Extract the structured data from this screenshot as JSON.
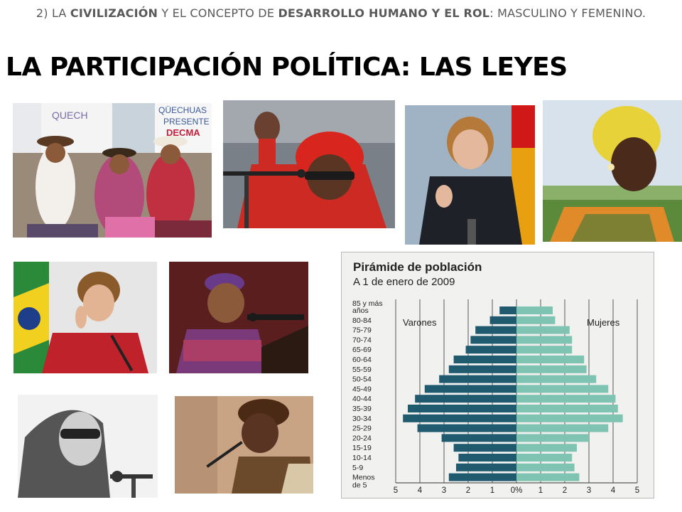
{
  "slide": {
    "subtitle_parts": {
      "p1": "2) LA ",
      "p2": "CIVILIZACIÓN",
      "p3": " Y EL CONCEPTO DE  ",
      "p4": "DESARROLLO HUMANO Y EL ROL",
      "p5": ": MASCULINO Y FEMENINO."
    },
    "title": "LA PARTICIPACIÓN POLÍTICA: LAS LEYES"
  },
  "photos": {
    "p1_sign1": "QUECH",
    "p1_sign2": "QÜECHUAS",
    "p1_sign3": "PRESENTE",
    "p1_sign4": "DECMA"
  },
  "chart_data": {
    "type": "bar",
    "title": "Pirámide de población",
    "subtitle": "A 1 de enero de 2009",
    "categories": [
      "85 y más años",
      "80-84",
      "75-79",
      "70-74",
      "65-69",
      "60-64",
      "55-59",
      "50-54",
      "45-49",
      "40-44",
      "35-39",
      "30-34",
      "25-29",
      "20-24",
      "15-19",
      "10-14",
      "5-9",
      "Menos de 5"
    ],
    "series": [
      {
        "name": "Varones",
        "values": [
          0.7,
          1.1,
          1.7,
          1.9,
          2.1,
          2.6,
          2.8,
          3.2,
          3.8,
          4.2,
          4.5,
          4.7,
          4.1,
          3.1,
          2.6,
          2.4,
          2.5,
          2.8
        ],
        "color": "#1f5a6e"
      },
      {
        "name": "Mujeres",
        "values": [
          1.5,
          1.6,
          2.2,
          2.3,
          2.3,
          2.8,
          2.9,
          3.3,
          3.8,
          4.1,
          4.2,
          4.4,
          3.8,
          3.0,
          2.5,
          2.3,
          2.4,
          2.6
        ],
        "color": "#7fc3b2"
      }
    ],
    "xticks": [
      "5",
      "4",
      "3",
      "2",
      "1",
      "0%",
      "1",
      "2",
      "3",
      "4",
      "5"
    ],
    "xlim": [
      -5,
      5
    ]
  }
}
